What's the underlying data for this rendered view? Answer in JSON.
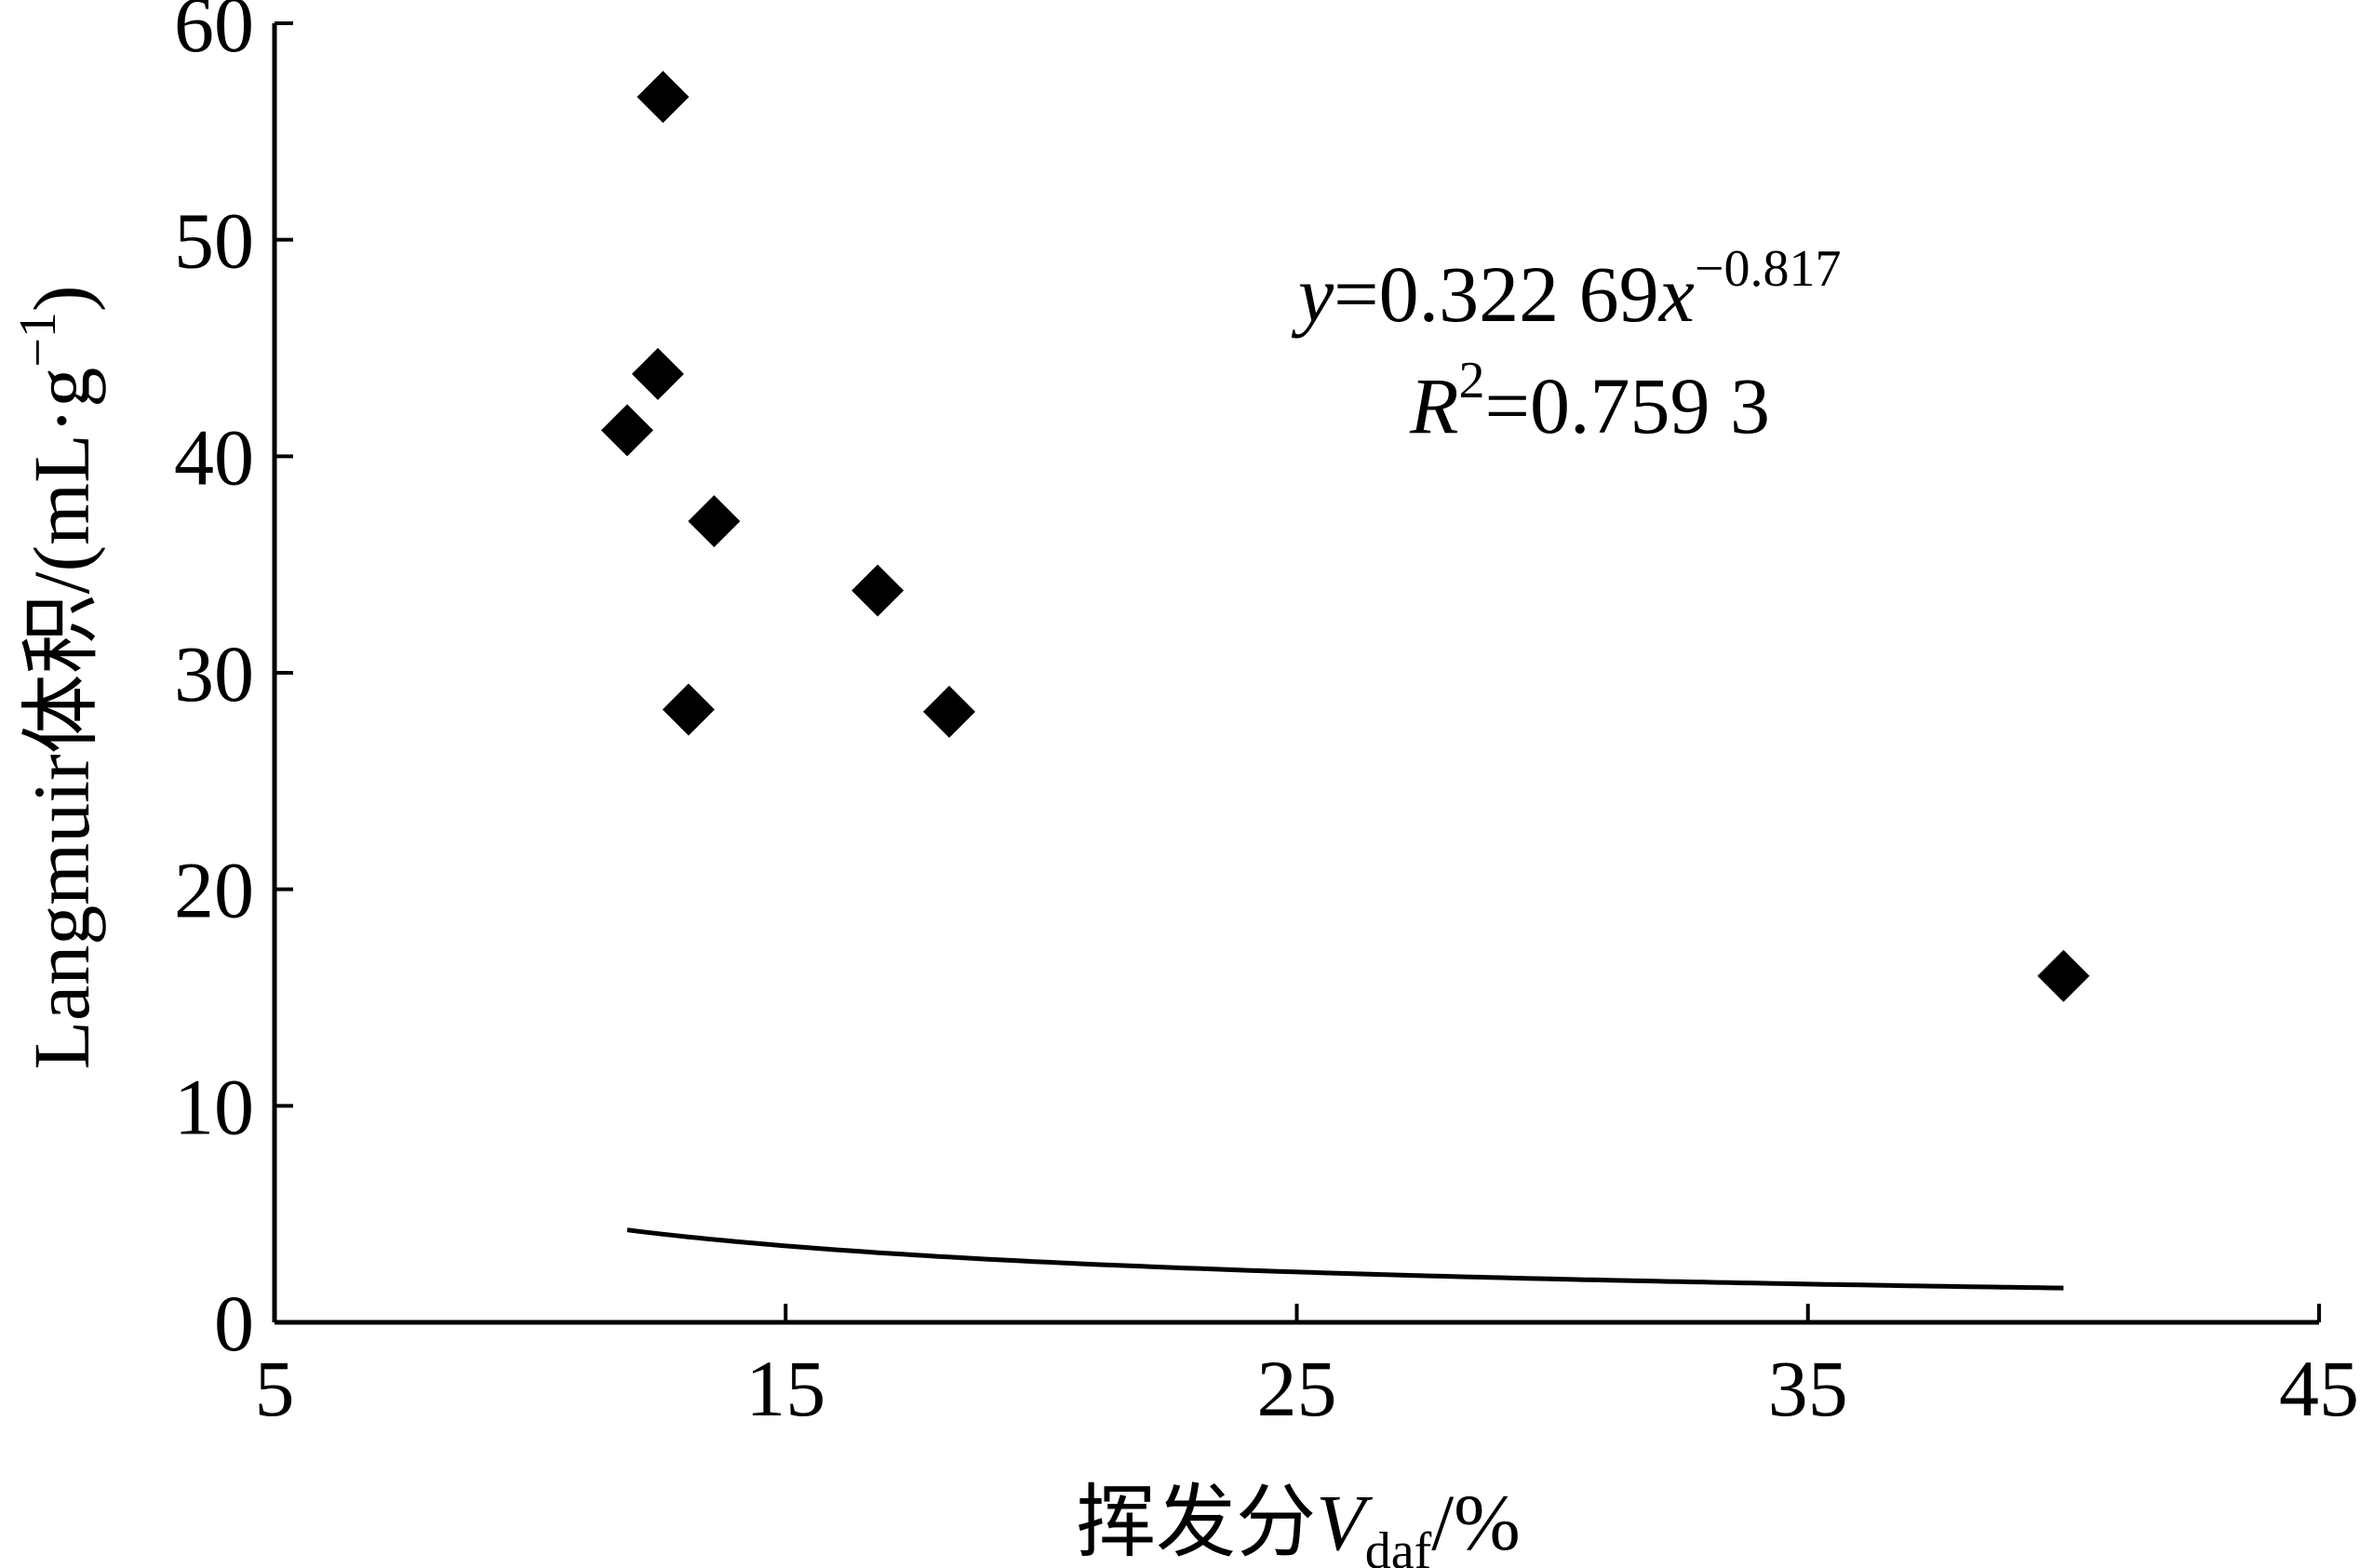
{
  "chart_data": {
    "type": "scatter",
    "title": "",
    "xlabel": {
      "prefix": "挥发分",
      "var": "V",
      "sub": "daf",
      "suffix": "/%"
    },
    "ylabel": {
      "main": "Langmuir体积/(mL·g",
      "sup": "−1",
      "close": ")"
    },
    "xlim": [
      5,
      45
    ],
    "ylim": [
      0,
      60
    ],
    "x_ticks": [
      5,
      15,
      25,
      35,
      45
    ],
    "y_ticks": [
      0,
      10,
      20,
      30,
      40,
      50,
      60
    ],
    "grid": false,
    "legend": "none",
    "marker": "diamond",
    "marker_color": "#000000",
    "points": [
      {
        "x": 12.6,
        "y": 56.6
      },
      {
        "x": 12.5,
        "y": 43.8
      },
      {
        "x": 11.9,
        "y": 41.2
      },
      {
        "x": 13.6,
        "y": 37.0
      },
      {
        "x": 16.8,
        "y": 33.8
      },
      {
        "x": 13.1,
        "y": 28.3
      },
      {
        "x": 18.2,
        "y": 28.2
      },
      {
        "x": 40.0,
        "y": 16.0
      }
    ],
    "trendline": {
      "type": "power",
      "coef": 0.32269,
      "exponent": -0.817,
      "x_range": [
        11.9,
        40.0
      ]
    },
    "annotation": {
      "eq_var": "y",
      "eq_mid": "=0.322 69",
      "eq_var2": "x",
      "eq_exp": "−0.817",
      "r2_var": "R",
      "r2_sup": "2",
      "r2_val": "=0.759 3"
    }
  }
}
